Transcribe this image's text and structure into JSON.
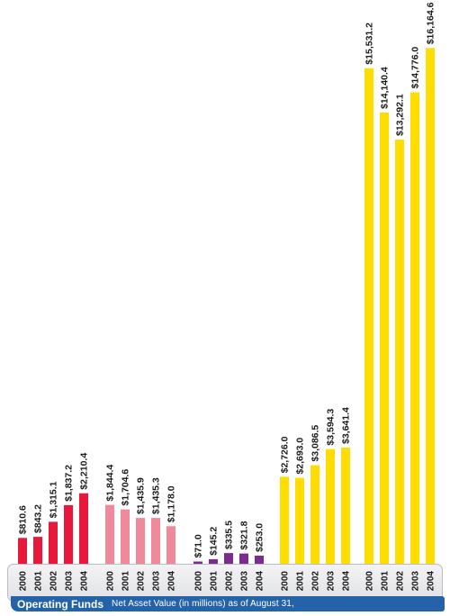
{
  "chart_data": {
    "type": "bar",
    "title": "Operating Funds",
    "subtitle": "Net Asset Value (in millions) as of August 31,",
    "categories": [
      "2000",
      "2001",
      "2002",
      "2003",
      "2004"
    ],
    "ylim": [
      0,
      16200
    ],
    "grid": false,
    "legend": "none",
    "series": [
      {
        "color": "#e8173c",
        "values": [
          810.6,
          843.2,
          1315.1,
          1837.2,
          2210.4
        ],
        "labels": [
          "$810.6",
          "$843.2",
          "$1,315.1",
          "$1,837.2",
          "$2,210.4"
        ]
      },
      {
        "color": "#f08a9a",
        "values": [
          1844.4,
          1704.6,
          1435.9,
          1435.3,
          1178.0
        ],
        "labels": [
          "$1,844.4",
          "$1,704.6",
          "$1,435.9",
          "$1,435.3",
          "$1,178.0"
        ]
      },
      {
        "color": "#7b2c8e",
        "values": [
          71.0,
          145.2,
          335.5,
          321.8,
          253.0
        ],
        "labels": [
          "$71.0",
          "$145.2",
          "$335.5",
          "$321.8",
          "$253.0"
        ]
      },
      {
        "color": "#ffdd00",
        "values": [
          2726.0,
          2693.0,
          3086.5,
          3594.3,
          3641.4
        ],
        "labels": [
          "$2,726.0",
          "$2,693.0",
          "$3,086.5",
          "$3,594.3",
          "$3,641.4"
        ]
      },
      {
        "color": "#ffdd00",
        "values": [
          15531.2,
          14140.4,
          13292.1,
          14776.0,
          16164.6
        ],
        "labels": [
          "$15,531.2",
          "$14,140.4",
          "$13,292.1",
          "$14,776.0",
          "$16,164.6"
        ]
      }
    ]
  },
  "footer": {
    "title": "Operating Funds",
    "subtitle": "Net Asset Value (in millions) as of August 31,",
    "band_color": "#2463a8"
  }
}
